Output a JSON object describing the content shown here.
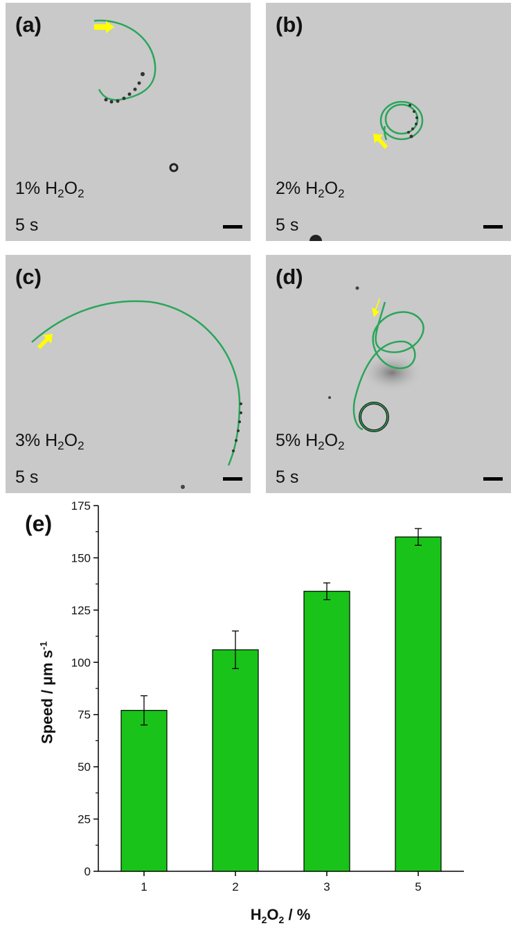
{
  "panels": [
    {
      "label": "(a)",
      "chem": "H",
      "sub1": "2",
      "mid": "O",
      "sub2": "2",
      "conc": "1%",
      "time": "5 s"
    },
    {
      "label": "(b)",
      "chem": "H",
      "sub1": "2",
      "mid": "O",
      "sub2": "2",
      "conc": "2%",
      "time": "5 s"
    },
    {
      "label": "(c)",
      "chem": "H",
      "sub1": "2",
      "mid": "O",
      "sub2": "2",
      "conc": "3%",
      "time": "5 s"
    },
    {
      "label": "(d)",
      "chem": "H",
      "sub1": "2",
      "mid": "O",
      "sub2": "2",
      "conc": "5%",
      "time": "5 s"
    }
  ],
  "colors": {
    "track": "#2aa55a",
    "arrow": "#ffff00",
    "bar": "#19c319",
    "bar_edge": "#000000"
  },
  "chart_label": "(e)",
  "chart_data": {
    "type": "bar",
    "categories": [
      "1",
      "2",
      "3",
      "5"
    ],
    "values": [
      77,
      106,
      134,
      160
    ],
    "errors": [
      7,
      9,
      4,
      4
    ],
    "ylim": [
      0,
      175
    ],
    "yticks": [
      0,
      25,
      50,
      75,
      100,
      125,
      150,
      175
    ],
    "ylabel_main": "Speed / μm s",
    "ylabel_sup": "-1",
    "xlabel_a": "H",
    "xlabel_sub1": "2",
    "xlabel_b": "O",
    "xlabel_sub2": "2",
    "xlabel_c": " / %",
    "grid": false
  }
}
